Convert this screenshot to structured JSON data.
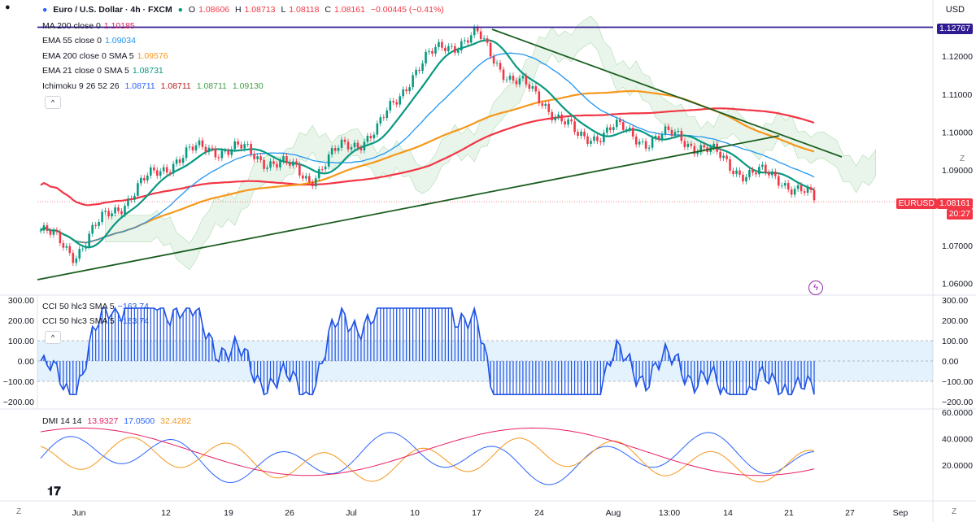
{
  "header": {
    "symbol": "Euro / U.S. Dollar · 4h · FXCM",
    "open_label": "O",
    "open": "1.08606",
    "high_label": "H",
    "high": "1.08713",
    "low_label": "L",
    "low": "1.08118",
    "close_label": "C",
    "close": "1.08161",
    "change": "−0.00445 (−0.41%)",
    "currency": "USD"
  },
  "indicators": [
    {
      "label": "MA 200 close 0",
      "value": "1.10185",
      "color": "#d81e5b"
    },
    {
      "label": "EMA 55 close 0",
      "value": "1.09034",
      "color": "#2196f3"
    },
    {
      "label": "EMA 200 close 0 SMA 5",
      "value": "1.09576",
      "color": "#f7971b"
    },
    {
      "label": "EMA 21 close 0 SMA 5",
      "value": "1.08731",
      "color": "#089981"
    }
  ],
  "ichimoku": {
    "label": "Ichimoku 9 26 52 26",
    "v1": "1.08711",
    "v2": "1.08711",
    "v3": "1.08711",
    "v4": "1.09130"
  },
  "cci": {
    "label1": "CCI 50 hlc3 SMA 5",
    "value1": "−163.74",
    "label2": "CCI 50 hlc3 SMA 5",
    "value2": "−163.74"
  },
  "dmi": {
    "label": "DMI 14 14",
    "v1": "13.9327",
    "v2": "17.0500",
    "v3": "32.4282"
  },
  "price_tags": {
    "resistance": "1.12767",
    "symbol_tag": "EURUSD",
    "last_price": "1.08161",
    "countdown": "20:27"
  },
  "price_axis": [
    "1.12000",
    "1.11000",
    "1.10000",
    "1.09000",
    "1.07000",
    "1.06000"
  ],
  "cci_axis": [
    "300.00",
    "200.00",
    "100.00",
    "0.00",
    "−100.00",
    "−200.00"
  ],
  "cci_axis_left": [
    "300.00",
    "200.00",
    "100.00",
    "0.00",
    "−100.00",
    "−200.00"
  ],
  "dmi_axis": [
    "60.0000",
    "40.0000",
    "20.0000"
  ],
  "time_axis": [
    "Jun",
    "12",
    "19",
    "26",
    "Jul",
    "10",
    "17",
    "24",
    "Aug",
    "13:00",
    "14",
    "21",
    "27",
    "Sep"
  ],
  "buttons": {
    "zoom_left": "Z",
    "zoom_right": "Z",
    "collapse": "^"
  },
  "colors": {
    "up": "#089981",
    "down": "#f23645",
    "ma200": "#f23645",
    "ema55": "#2196f3",
    "ema200": "#f7971b",
    "ema21": "#089981",
    "cci": "#1e53e5",
    "dmi_plus": "#2962ff",
    "dmi_minus": "#f7971b",
    "adx": "#e91e63",
    "trendline": "#1b5e20",
    "resistance": "#311b92"
  },
  "chart_data": {
    "type": "line",
    "title": "Euro / U.S. Dollar · 4h · FXCM",
    "x_axis": [
      "Jun",
      "12",
      "19",
      "26",
      "Jul",
      "10",
      "17",
      "24",
      "Aug",
      "13:00",
      "14",
      "21",
      "27",
      "Sep"
    ],
    "ylim": [
      1.058,
      1.131
    ],
    "close_path": [
      [
        "Jun",
        1.074
      ],
      [
        "Jun",
        1.068
      ],
      [
        "12",
        1.078
      ],
      [
        "12",
        1.086
      ],
      [
        "19",
        1.093
      ],
      [
        "19",
        1.096
      ],
      [
        "26",
        1.095
      ],
      [
        "26",
        1.092
      ],
      [
        "Jul",
        1.088
      ],
      [
        "Jul",
        1.096
      ],
      [
        "10",
        1.1
      ],
      [
        "10",
        1.115
      ],
      [
        "17",
        1.123
      ],
      [
        "17",
        1.125
      ],
      [
        "24",
        1.114
      ],
      [
        "24",
        1.108
      ],
      [
        "Aug",
        1.098
      ],
      [
        "Aug",
        1.101
      ],
      [
        "13:00",
        1.098
      ],
      [
        "13:00",
        1.099
      ],
      [
        "14",
        1.094
      ],
      [
        "14",
        1.089
      ],
      [
        "21",
        1.088
      ],
      [
        "21",
        1.0816
      ]
    ],
    "series": [
      {
        "name": "MA 200 close 0",
        "last": 1.10185
      },
      {
        "name": "EMA 55 close 0",
        "last": 1.09034
      },
      {
        "name": "EMA 200 close 0 SMA 5",
        "last": 1.09576
      },
      {
        "name": "EMA 21 close 0 SMA 5",
        "last": 1.08731
      }
    ],
    "horizontal_line": 1.12767,
    "last_close": 1.08161
  }
}
